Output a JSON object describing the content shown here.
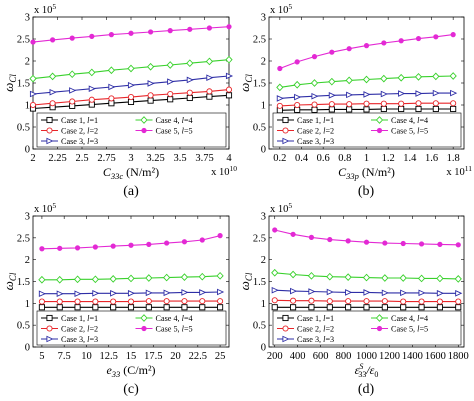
{
  "figure": {
    "panels": [
      "(a)",
      "(b)",
      "(c)",
      "(d)"
    ],
    "ylabel_main": "ω",
    "ylabel_sub": "Cl",
    "y_multiplier_base": "x 10",
    "y_multiplier_exp": "5"
  },
  "legend": {
    "entries": [
      {
        "prefix": "Case 1, ",
        "l": "l",
        "suffix": "=1"
      },
      {
        "prefix": "Case 2, ",
        "l": "l",
        "suffix": "=2"
      },
      {
        "prefix": "Case 3, ",
        "l": "l",
        "suffix": "=3"
      },
      {
        "prefix": "Case 4, ",
        "l": "l",
        "suffix": "=4"
      },
      {
        "prefix": "Case 5, ",
        "l": "l",
        "suffix": "=5"
      }
    ]
  },
  "colors": {
    "case1": "#000000",
    "case2": "#e8262a",
    "case3": "#2e2ea6",
    "case4": "#39d12c",
    "case5": "#e329d4"
  },
  "chart_data": [
    {
      "type": "line",
      "panel": "(a)",
      "xlabel_main": "C",
      "xlabel_sub": "33c",
      "xlabel_unit": " (N/m²)",
      "x_multiplier_base": "x 10",
      "x_multiplier_exp": "10",
      "xlim": [
        2,
        4
      ],
      "ylim": [
        0,
        3
      ],
      "xticks": [
        "2",
        "2.25",
        "2.5",
        "2.75",
        "3",
        "3.25",
        "3.5",
        "3.75",
        "4"
      ],
      "yticks": [
        "0",
        "0.5",
        "1",
        "1.5",
        "2",
        "2.5",
        "3"
      ],
      "x": [
        2,
        2.2,
        2.4,
        2.6,
        2.8,
        3.0,
        3.2,
        3.4,
        3.6,
        3.8,
        4.0
      ],
      "series": [
        {
          "name": "Case 1, l=1",
          "marker": "square",
          "values": [
            0.92,
            0.95,
            0.98,
            1.01,
            1.04,
            1.07,
            1.1,
            1.13,
            1.16,
            1.19,
            1.22
          ]
        },
        {
          "name": "Case 2, l=2",
          "marker": "circle",
          "values": [
            1.0,
            1.04,
            1.08,
            1.12,
            1.15,
            1.18,
            1.22,
            1.25,
            1.28,
            1.31,
            1.35
          ]
        },
        {
          "name": "Case 3, l=3",
          "marker": "triangle-right",
          "values": [
            1.25,
            1.29,
            1.33,
            1.37,
            1.41,
            1.45,
            1.49,
            1.53,
            1.57,
            1.62,
            1.66
          ]
        },
        {
          "name": "Case 4, l=4",
          "marker": "diamond",
          "values": [
            1.6,
            1.65,
            1.7,
            1.74,
            1.79,
            1.83,
            1.87,
            1.91,
            1.95,
            1.99,
            2.03
          ]
        },
        {
          "name": "Case 5, l=5",
          "marker": "star",
          "values": [
            2.43,
            2.48,
            2.52,
            2.56,
            2.6,
            2.63,
            2.66,
            2.69,
            2.72,
            2.75,
            2.78
          ]
        }
      ]
    },
    {
      "type": "line",
      "panel": "(b)",
      "xlabel_main": "C",
      "xlabel_sub": "33p",
      "xlabel_unit": " (N/m²)",
      "x_multiplier_base": "x 10",
      "x_multiplier_exp": "11",
      "xlim": [
        0.1,
        1.9
      ],
      "ylim": [
        0,
        3
      ],
      "xticks": [
        "0.2",
        "0.4",
        "0.6",
        "0.8",
        "1",
        "1.2",
        "1.4",
        "1.6",
        "1.8"
      ],
      "yticks": [
        "0",
        "0.5",
        "1",
        "1.5",
        "2",
        "2.5",
        "3"
      ],
      "x": [
        0.2,
        0.36,
        0.52,
        0.68,
        0.84,
        1.0,
        1.16,
        1.32,
        1.48,
        1.64,
        1.8
      ],
      "series": [
        {
          "name": "Case 1, l=1",
          "marker": "square",
          "values": [
            0.88,
            0.89,
            0.89,
            0.9,
            0.9,
            0.9,
            0.91,
            0.91,
            0.91,
            0.91,
            0.91
          ]
        },
        {
          "name": "Case 2, l=2",
          "marker": "circle",
          "values": [
            0.98,
            1.0,
            1.01,
            1.02,
            1.02,
            1.03,
            1.03,
            1.03,
            1.04,
            1.04,
            1.04
          ]
        },
        {
          "name": "Case 3, l=3",
          "marker": "triangle-right",
          "values": [
            1.15,
            1.18,
            1.2,
            1.22,
            1.23,
            1.24,
            1.25,
            1.26,
            1.26,
            1.27,
            1.27
          ]
        },
        {
          "name": "Case 4, l=4",
          "marker": "diamond",
          "values": [
            1.4,
            1.46,
            1.5,
            1.53,
            1.56,
            1.58,
            1.6,
            1.62,
            1.64,
            1.65,
            1.66
          ]
        },
        {
          "name": "Case 5, l=5",
          "marker": "star",
          "values": [
            1.83,
            1.98,
            2.1,
            2.2,
            2.28,
            2.35,
            2.41,
            2.46,
            2.51,
            2.55,
            2.6
          ]
        }
      ]
    },
    {
      "type": "line",
      "panel": "(c)",
      "xlabel_main": "e",
      "xlabel_sub": "33",
      "xlabel_unit": " (C/m²)",
      "xlim": [
        4,
        26
      ],
      "ylim": [
        0,
        3
      ],
      "xticks": [
        "5",
        "7.5",
        "10",
        "12.5",
        "15",
        "17.5",
        "20",
        "22.5",
        "25"
      ],
      "yticks": [
        "0",
        "0.5",
        "1",
        "1.5",
        "2",
        "2.5",
        "3"
      ],
      "x": [
        5,
        7,
        9,
        11,
        13,
        15,
        17,
        19,
        21,
        23,
        25
      ],
      "series": [
        {
          "name": "Case 1, l=1",
          "marker": "square",
          "values": [
            0.91,
            0.91,
            0.91,
            0.91,
            0.91,
            0.91,
            0.91,
            0.91,
            0.91,
            0.91,
            0.91
          ]
        },
        {
          "name": "Case 2, l=2",
          "marker": "circle",
          "values": [
            1.04,
            1.04,
            1.04,
            1.04,
            1.04,
            1.04,
            1.05,
            1.05,
            1.05,
            1.05,
            1.05
          ]
        },
        {
          "name": "Case 3, l=3",
          "marker": "triangle-right",
          "values": [
            1.22,
            1.22,
            1.22,
            1.23,
            1.23,
            1.23,
            1.24,
            1.24,
            1.25,
            1.25,
            1.26
          ]
        },
        {
          "name": "Case 4, l=4",
          "marker": "diamond",
          "values": [
            1.54,
            1.54,
            1.55,
            1.55,
            1.56,
            1.57,
            1.58,
            1.59,
            1.6,
            1.61,
            1.63
          ]
        },
        {
          "name": "Case 5, l=5",
          "marker": "star",
          "values": [
            2.25,
            2.26,
            2.27,
            2.29,
            2.31,
            2.33,
            2.35,
            2.38,
            2.41,
            2.45,
            2.55
          ]
        }
      ]
    },
    {
      "type": "line",
      "panel": "(d)",
      "xlabel_main": "ε",
      "xlabel_sub": "33",
      "xlabel_sup": "S",
      "xlabel_tail": "/ε",
      "xlabel_tail_sub": "0",
      "xlim": [
        150,
        1850
      ],
      "ylim": [
        0,
        3
      ],
      "xticks": [
        "200",
        "400",
        "600",
        "800",
        "1000",
        "1200",
        "1400",
        "1600",
        "1800"
      ],
      "yticks": [
        "0",
        "0.5",
        "1",
        "1.5",
        "2",
        "2.5",
        "3"
      ],
      "x": [
        200,
        360,
        520,
        680,
        840,
        1000,
        1160,
        1320,
        1480,
        1640,
        1800
      ],
      "series": [
        {
          "name": "Case 1, l=1",
          "marker": "square",
          "values": [
            0.91,
            0.91,
            0.91,
            0.91,
            0.91,
            0.91,
            0.91,
            0.91,
            0.91,
            0.91,
            0.91
          ]
        },
        {
          "name": "Case 2, l=2",
          "marker": "circle",
          "values": [
            1.07,
            1.06,
            1.06,
            1.05,
            1.05,
            1.05,
            1.05,
            1.04,
            1.04,
            1.04,
            1.04
          ]
        },
        {
          "name": "Case 3, l=3",
          "marker": "triangle-right",
          "values": [
            1.3,
            1.28,
            1.27,
            1.26,
            1.25,
            1.25,
            1.24,
            1.24,
            1.24,
            1.23,
            1.23
          ]
        },
        {
          "name": "Case 4, l=4",
          "marker": "diamond",
          "values": [
            1.7,
            1.66,
            1.63,
            1.61,
            1.6,
            1.59,
            1.58,
            1.58,
            1.57,
            1.57,
            1.56
          ]
        },
        {
          "name": "Case 5, l=5",
          "marker": "star",
          "values": [
            2.68,
            2.58,
            2.51,
            2.46,
            2.43,
            2.4,
            2.38,
            2.37,
            2.36,
            2.35,
            2.34
          ]
        }
      ]
    }
  ]
}
